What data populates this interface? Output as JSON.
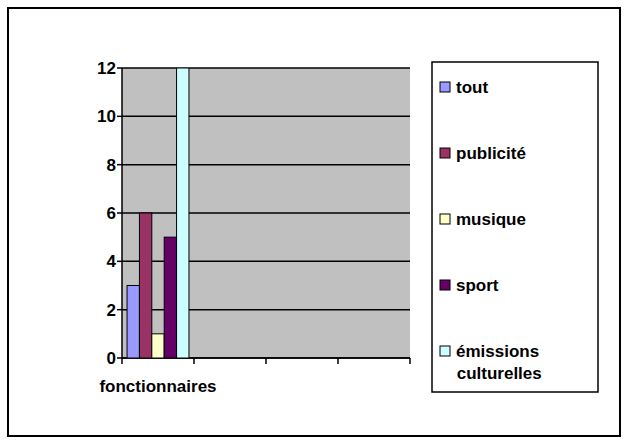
{
  "chart_data": {
    "type": "bar",
    "categories": [
      "fonctionnaires",
      null,
      null,
      null
    ],
    "series": [
      {
        "name": "tout",
        "color": "#9999ff",
        "values": [
          3,
          null,
          null,
          null
        ]
      },
      {
        "name": "publicité",
        "color": "#993366",
        "values": [
          6,
          null,
          null,
          null
        ]
      },
      {
        "name": "musique",
        "color": "#ffffcc",
        "values": [
          1,
          null,
          null,
          null
        ]
      },
      {
        "name": "sport",
        "color": "#660066",
        "values": [
          5,
          null,
          null,
          null
        ]
      },
      {
        "name": "émissions culturelles",
        "color": "#ccffff",
        "values": [
          12,
          null,
          null,
          null
        ]
      }
    ],
    "ylim": [
      0,
      12
    ],
    "yticks": [
      0,
      2,
      4,
      6,
      8,
      10,
      12
    ],
    "grid": true,
    "legend": "right"
  }
}
